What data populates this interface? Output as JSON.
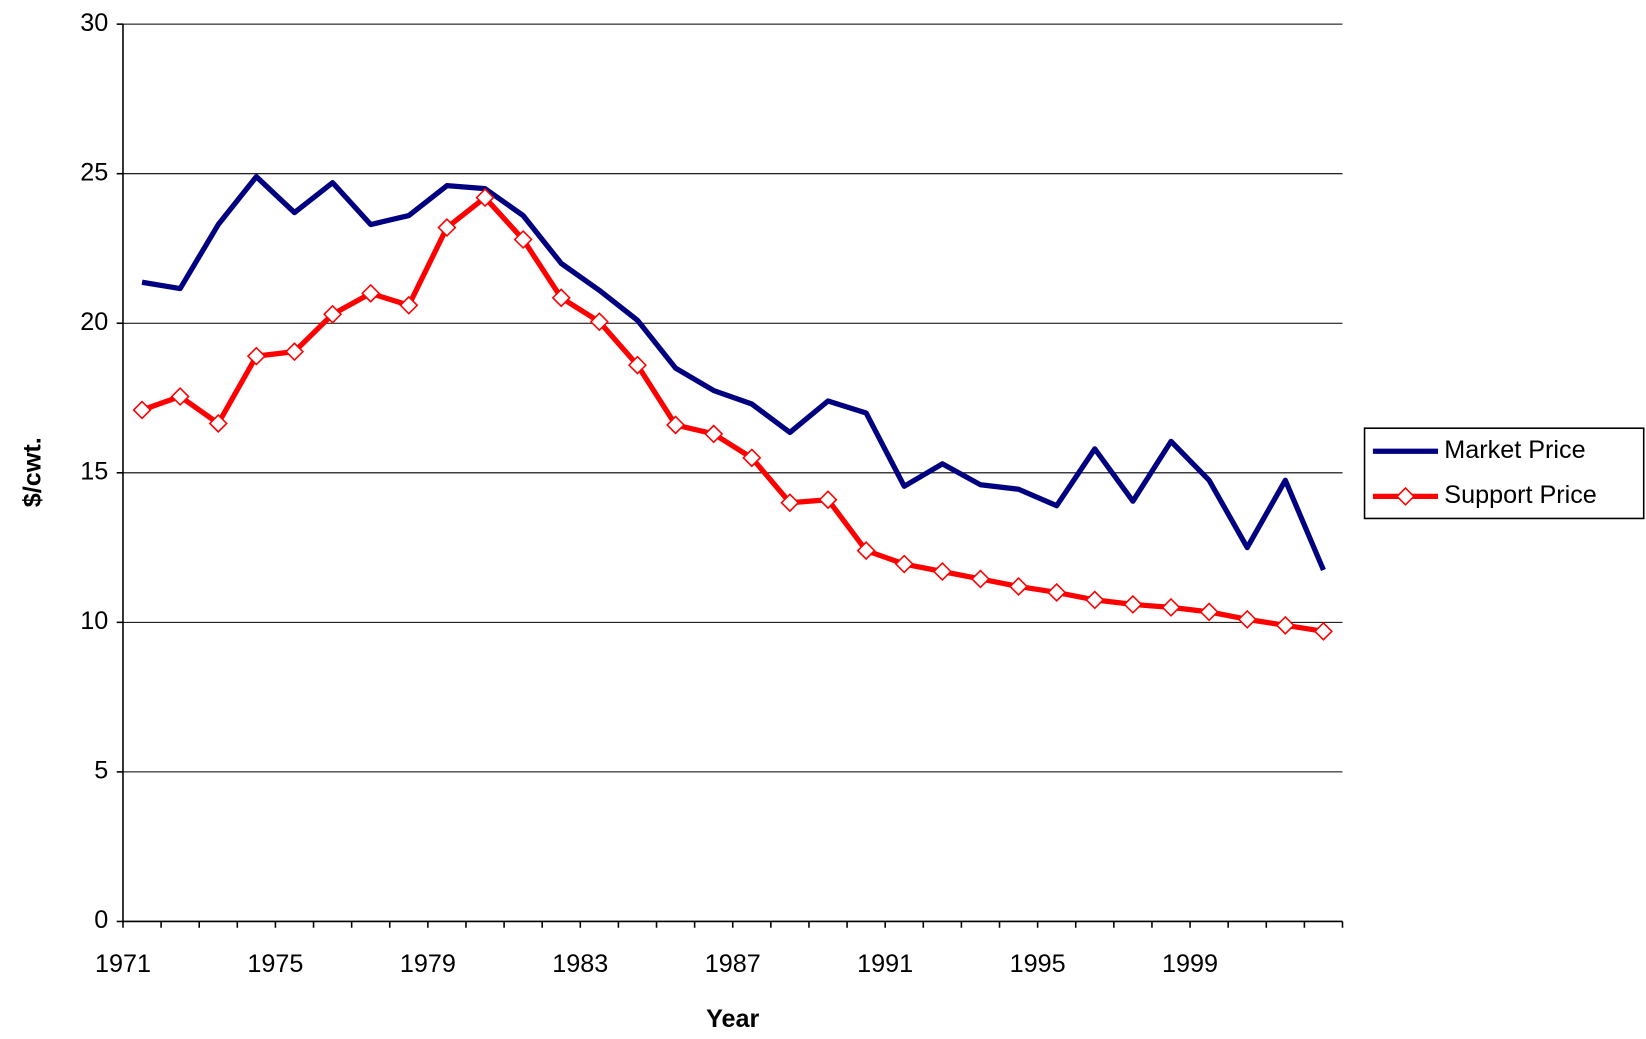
{
  "chart_data": {
    "type": "line",
    "x_label": "Year",
    "y_label": "$/cwt.",
    "categories": [
      "1971",
      null,
      null,
      null,
      "1975",
      null,
      null,
      null,
      "1979",
      null,
      null,
      null,
      "1983",
      null,
      null,
      null,
      "1987",
      null,
      null,
      null,
      "1991",
      null,
      null,
      null,
      "1995",
      null,
      null,
      null,
      "1999",
      null,
      null,
      null
    ],
    "series": [
      {
        "name": "Market Price",
        "color": "#000080",
        "marker": false,
        "values": [
          21.37,
          21.16,
          23.3,
          24.9,
          23.7,
          24.7,
          23.3,
          23.6,
          24.6,
          24.5,
          23.6,
          22.0,
          21.1,
          20.1,
          18.5,
          17.75,
          17.3,
          16.35,
          17.4,
          17.0,
          14.55,
          15.3,
          14.6,
          14.45,
          13.9,
          15.8,
          14.05,
          16.05,
          14.75,
          12.5,
          14.75,
          11.75
        ]
      },
      {
        "name": "Support Price",
        "color": "#ff0000",
        "marker": true,
        "values": [
          17.1,
          17.55,
          16.65,
          18.9,
          19.05,
          20.3,
          21.0,
          20.6,
          23.2,
          24.2,
          22.8,
          20.85,
          20.05,
          18.6,
          16.6,
          16.3,
          15.5,
          14.0,
          14.1,
          12.4,
          11.95,
          11.7,
          11.45,
          11.2,
          11.0,
          10.75,
          10.6,
          10.5,
          10.35,
          10.1,
          9.9,
          9.7
        ]
      }
    ],
    "ylim": [
      0,
      30
    ],
    "yticks": [
      0,
      5,
      10,
      15,
      20,
      25,
      30
    ],
    "grid": true,
    "legend": "right"
  }
}
